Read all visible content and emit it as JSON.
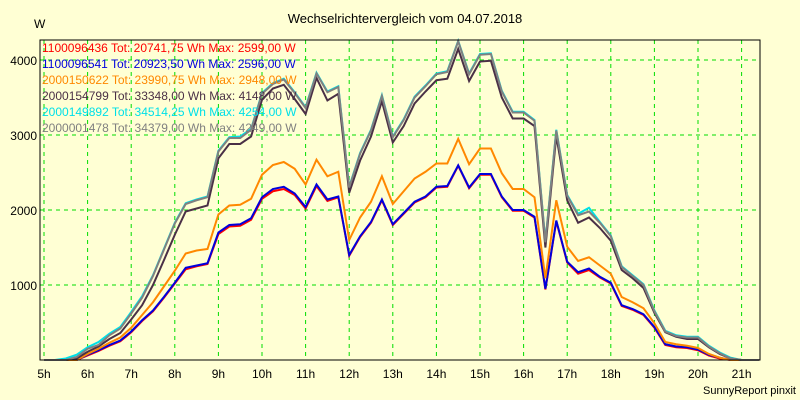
{
  "chart_data": {
    "type": "line",
    "title": "Wechselrichtervergleich vom 04.07.2018",
    "ylabel": "W",
    "xlabel": "",
    "footer": "SunnyReport pinxit",
    "grid": true,
    "ylim": [
      0,
      4267
    ],
    "xlim": [
      5,
      21.4
    ],
    "yticks": [
      1000,
      2000,
      3000,
      4000
    ],
    "ytick_labels": [
      "1000",
      "2000",
      "3000",
      "4000"
    ],
    "xticks": [
      5,
      6,
      7,
      8,
      9,
      10,
      11,
      12,
      13,
      14,
      15,
      16,
      17,
      18,
      19,
      20,
      21
    ],
    "xtick_labels": [
      "5h",
      "6h",
      "7h",
      "8h",
      "9h",
      "10h",
      "11h",
      "12h",
      "13h",
      "14h",
      "15h",
      "16h",
      "17h",
      "18h",
      "19h",
      "20h",
      "21h"
    ],
    "legend_position": "top-left",
    "x": [
      5.25,
      5.5,
      5.75,
      6,
      6.25,
      6.5,
      6.75,
      7,
      7.25,
      7.5,
      7.75,
      8,
      8.25,
      8.5,
      8.75,
      9,
      9.25,
      9.5,
      9.75,
      10,
      10.25,
      10.5,
      10.75,
      11,
      11.25,
      11.5,
      11.75,
      12,
      12.25,
      12.5,
      12.75,
      13,
      13.25,
      13.5,
      13.75,
      14,
      14.25,
      14.5,
      14.75,
      15,
      15.25,
      15.5,
      15.75,
      16,
      16.25,
      16.5,
      16.75,
      17,
      17.25,
      17.5,
      17.75,
      18,
      18.25,
      18.5,
      18.75,
      19,
      19.25,
      19.5,
      19.75,
      20,
      20.25,
      20.5,
      20.75,
      21
    ],
    "series": [
      {
        "name": "1100096436",
        "legend": "1100096436 Tot: 20741,75 Wh Max: 2599,00 W",
        "color": "#ff0000",
        "values": [
          0,
          0,
          0,
          60,
          120,
          190,
          250,
          370,
          520,
          650,
          830,
          1020,
          1210,
          1250,
          1280,
          1680,
          1780,
          1790,
          1870,
          2150,
          2250,
          2280,
          2200,
          2020,
          2320,
          2120,
          2170,
          1390,
          1640,
          1830,
          2130,
          1800,
          1950,
          2100,
          2170,
          2300,
          2310,
          2590,
          2290,
          2470,
          2470,
          2170,
          1990,
          1990,
          1900,
          940,
          1850,
          1300,
          1150,
          1200,
          1100,
          1020,
          720,
          670,
          600,
          430,
          200,
          170,
          160,
          130,
          60,
          20,
          0,
          0
        ]
      },
      {
        "name": "1100096541",
        "legend": "1100096541 Tot: 20923,50 Wh Max: 2596,00 W",
        "color": "#0000dd",
        "values": [
          0,
          0,
          0,
          70,
          130,
          200,
          260,
          380,
          530,
          660,
          840,
          1030,
          1230,
          1260,
          1290,
          1700,
          1800,
          1810,
          1890,
          2170,
          2280,
          2310,
          2220,
          2040,
          2340,
          2140,
          2180,
          1400,
          1650,
          1840,
          2140,
          1810,
          1960,
          2110,
          2180,
          2310,
          2320,
          2596,
          2300,
          2480,
          2480,
          2180,
          2000,
          2000,
          1910,
          950,
          1860,
          1310,
          1170,
          1220,
          1110,
          1030,
          730,
          680,
          610,
          440,
          210,
          180,
          170,
          140,
          70,
          30,
          0,
          0
        ]
      },
      {
        "name": "2000150622",
        "legend": "2000150622 Tot: 23990,75 Wh Max: 2948,00 W",
        "color": "#ff8800",
        "values": [
          0,
          0,
          0,
          80,
          150,
          230,
          300,
          430,
          600,
          770,
          980,
          1190,
          1420,
          1460,
          1480,
          1940,
          2060,
          2070,
          2150,
          2470,
          2600,
          2640,
          2550,
          2340,
          2670,
          2450,
          2510,
          1600,
          1900,
          2110,
          2450,
          2080,
          2250,
          2420,
          2510,
          2620,
          2620,
          2948,
          2610,
          2820,
          2820,
          2490,
          2280,
          2280,
          2170,
          1090,
          2130,
          1510,
          1320,
          1370,
          1260,
          1150,
          840,
          770,
          690,
          490,
          240,
          210,
          190,
          160,
          80,
          30,
          0,
          0
        ]
      },
      {
        "name": "2000154799",
        "legend": "2000154799 Tot: 33348,00 Wh Max: 4148,00 W",
        "color": "#4a3046",
        "values": [
          0,
          0,
          20,
          110,
          180,
          280,
          360,
          540,
          730,
          1000,
          1330,
          1670,
          1980,
          2020,
          2060,
          2690,
          2880,
          2880,
          2980,
          3470,
          3620,
          3670,
          3480,
          3280,
          3760,
          3460,
          3550,
          2230,
          2660,
          2980,
          3450,
          2900,
          3120,
          3420,
          3580,
          3730,
          3750,
          4148,
          3720,
          3980,
          3990,
          3500,
          3220,
          3220,
          3120,
          1500,
          2990,
          2130,
          1830,
          1900,
          1760,
          1590,
          1200,
          1090,
          960,
          630,
          370,
          310,
          280,
          280,
          170,
          80,
          20,
          0
        ]
      },
      {
        "name": "2000149892",
        "legend": "2000149892 Tot: 34514,25 Wh Max: 4254,00 W",
        "color": "#00e0e8",
        "values": [
          0,
          20,
          70,
          170,
          240,
          350,
          440,
          640,
          850,
          1130,
          1480,
          1830,
          2090,
          2140,
          2180,
          2790,
          2970,
          2980,
          3080,
          3560,
          3690,
          3750,
          3570,
          3370,
          3830,
          3580,
          3650,
          2310,
          2760,
          3070,
          3530,
          2980,
          3210,
          3510,
          3660,
          3820,
          3850,
          4254,
          3820,
          4080,
          4090,
          3590,
          3310,
          3310,
          3200,
          1580,
          3070,
          2200,
          1950,
          2030,
          1840,
          1660,
          1250,
          1130,
          1010,
          660,
          390,
          330,
          310,
          310,
          190,
          100,
          30,
          0
        ]
      },
      {
        "name": "2000001478",
        "legend": "2000001478 Tot: 34379,00 Wh Max: 4249,00 W",
        "color": "#808080",
        "values": [
          0,
          0,
          40,
          150,
          200,
          330,
          420,
          620,
          830,
          1120,
          1470,
          1820,
          2080,
          2130,
          2170,
          2780,
          2960,
          2960,
          3070,
          3550,
          3680,
          3740,
          3560,
          3360,
          3820,
          3570,
          3640,
          2300,
          2750,
          3060,
          3520,
          2970,
          3200,
          3500,
          3650,
          3810,
          3840,
          4249,
          3810,
          4070,
          4080,
          3580,
          3300,
          3300,
          3190,
          1570,
          3060,
          2190,
          1930,
          1980,
          1830,
          1650,
          1240,
          1120,
          1000,
          650,
          380,
          320,
          300,
          300,
          180,
          90,
          20,
          0
        ]
      }
    ]
  }
}
